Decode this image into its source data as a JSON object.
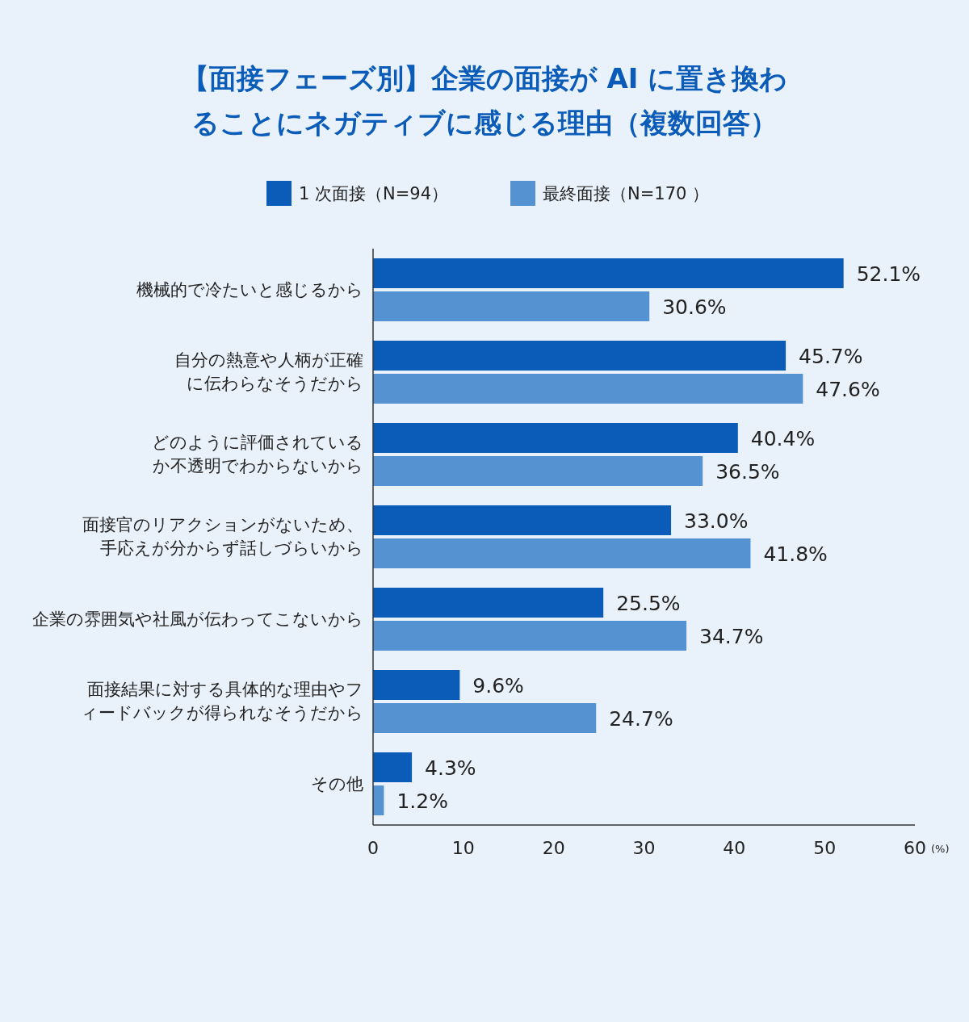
{
  "chart_data": {
    "type": "bar",
    "orientation": "horizontal",
    "title": "【面接フェーズ別】企業の面接が AI に置き換わることにネガティブに感じる理由（複数回答）",
    "categories": [
      "機械的で冷たいと感じるから",
      "自分の熱意や人柄が正確に伝わらなそうだから",
      "どのように評価されているか不透明でわからないから",
      "面接官のリアクションがないため、手応えが分からず話しづらいから",
      "企業の雰囲気や社風が伝わってこないから",
      "面接結果に対する具体的な理由やフィードバックが得られなそうだから",
      "その他"
    ],
    "series": [
      {
        "name": "1 次面接（N=94）",
        "color": "#0a5cb8",
        "values": [
          52.1,
          45.7,
          40.4,
          33.0,
          25.5,
          9.6,
          4.3
        ],
        "value_labels": [
          "52.1%",
          "45.7%",
          "40.4%",
          "33.0%",
          "25.5%",
          "9.6%",
          "4.3%"
        ]
      },
      {
        "name": "最終面接（N=170 ）",
        "color": "#5592d2",
        "values": [
          30.6,
          47.6,
          36.5,
          41.8,
          34.7,
          24.7,
          1.2
        ],
        "value_labels": [
          "30.6%",
          "47.6%",
          "36.5%",
          "41.8%",
          "34.7%",
          "24.7%",
          "1.2%"
        ]
      }
    ],
    "xlim": [
      0,
      60
    ],
    "xticks": [
      0,
      10,
      20,
      30,
      40,
      50,
      60
    ],
    "xlabel": "(%)",
    "legend": "top",
    "grid": false
  }
}
